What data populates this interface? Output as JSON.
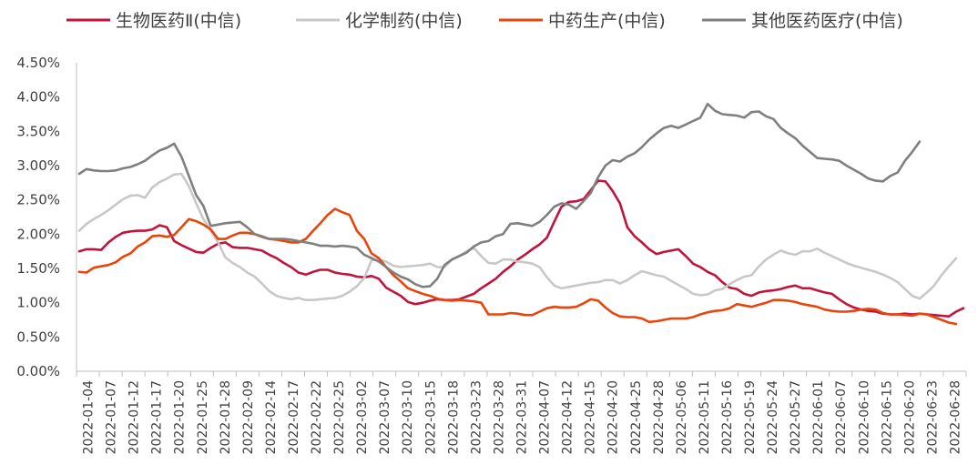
{
  "chart_data": {
    "type": "line",
    "title": "",
    "xlabel": "",
    "ylabel": "",
    "ylim": [
      0,
      0.045
    ],
    "y_ticks": [
      "0.00%",
      "0.50%",
      "1.00%",
      "1.50%",
      "2.00%",
      "2.50%",
      "3.00%",
      "3.50%",
      "4.00%",
      "4.50%"
    ],
    "x_ticks": [
      "2022-01-04",
      "2022-01-07",
      "2022-01-12",
      "2022-01-17",
      "2022-01-20",
      "2022-01-25",
      "2022-01-28",
      "2022-02-09",
      "2022-02-14",
      "2022-02-17",
      "2022-02-22",
      "2022-02-25",
      "2022-03-02",
      "2022-03-07",
      "2022-03-10",
      "2022-03-15",
      "2022-03-18",
      "2022-03-23",
      "2022-03-28",
      "2022-03-31",
      "2022-04-07",
      "2022-04-12",
      "2022-04-15",
      "2022-04-20",
      "2022-04-25",
      "2022-04-28",
      "2022-05-06",
      "2022-05-11",
      "2022-05-16",
      "2022-05-19",
      "2022-05-24",
      "2022-05-27",
      "2022-06-01",
      "2022-06-07",
      "2022-06-10",
      "2022-06-15",
      "2022-06-20",
      "2022-06-23",
      "2022-06-28"
    ],
    "legend_position": "top",
    "grid": false,
    "series": [
      {
        "name": "生物医药Ⅱ(中信)",
        "color": "#C0143C",
        "values": [
          0.0175,
          0.0178,
          0.0178,
          0.0177,
          0.0188,
          0.0196,
          0.0202,
          0.0204,
          0.0205,
          0.0205,
          0.0207,
          0.0213,
          0.021,
          0.019,
          0.0184,
          0.0179,
          0.0174,
          0.0173,
          0.018,
          0.0186,
          0.0188,
          0.0181,
          0.018,
          0.018,
          0.0178,
          0.0176,
          0.017,
          0.0165,
          0.0158,
          0.0152,
          0.0144,
          0.0141,
          0.0145,
          0.0148,
          0.0148,
          0.0144,
          0.0142,
          0.0141,
          0.0138,
          0.0137,
          0.0139,
          0.0135,
          0.0122,
          0.0116,
          0.011,
          0.0101,
          0.0098,
          0.01,
          0.0103,
          0.0105,
          0.0104,
          0.0104,
          0.0105,
          0.0109,
          0.0113,
          0.0121,
          0.0128,
          0.0135,
          0.0145,
          0.0153,
          0.0163,
          0.017,
          0.0178,
          0.0185,
          0.0195,
          0.0218,
          0.024,
          0.0247,
          0.0248,
          0.0251,
          0.0264,
          0.0278,
          0.0277,
          0.0263,
          0.0245,
          0.021,
          0.0197,
          0.0188,
          0.0178,
          0.0171,
          0.0174,
          0.0176,
          0.0178,
          0.0168,
          0.0157,
          0.0152,
          0.0145,
          0.014,
          0.013,
          0.0122,
          0.012,
          0.0113,
          0.011,
          0.0115,
          0.0117,
          0.0118,
          0.012,
          0.0123,
          0.0125,
          0.0121,
          0.0121,
          0.0118,
          0.0115,
          0.0113,
          0.0105,
          0.0098,
          0.0093,
          0.009,
          0.0088,
          0.0087,
          0.0084,
          0.0083,
          0.0083,
          0.0084,
          0.0083,
          0.0084,
          0.0083,
          0.0082,
          0.0081,
          0.008,
          0.0087,
          0.0092
        ]
      },
      {
        "name": "化学制药(中信)",
        "color": "#C8C8C8",
        "values": [
          0.0205,
          0.0215,
          0.0222,
          0.0228,
          0.0235,
          0.0243,
          0.0251,
          0.0256,
          0.0257,
          0.0253,
          0.0268,
          0.0276,
          0.0281,
          0.0287,
          0.0288,
          0.027,
          0.0245,
          0.0222,
          0.0205,
          0.0188,
          0.0166,
          0.0158,
          0.0152,
          0.0144,
          0.0138,
          0.0128,
          0.0117,
          0.011,
          0.0107,
          0.0105,
          0.0107,
          0.0104,
          0.0104,
          0.0105,
          0.0106,
          0.0107,
          0.011,
          0.0116,
          0.0124,
          0.0136,
          0.0162,
          0.0163,
          0.016,
          0.0154,
          0.0152,
          0.0153,
          0.0154,
          0.0155,
          0.0157,
          0.0152,
          0.0152,
          0.0163,
          0.0168,
          0.0175,
          0.018,
          0.0168,
          0.0158,
          0.0157,
          0.0163,
          0.0163,
          0.016,
          0.0159,
          0.0157,
          0.0152,
          0.0137,
          0.0125,
          0.0121,
          0.0123,
          0.0125,
          0.0127,
          0.0129,
          0.013,
          0.0133,
          0.0133,
          0.0128,
          0.0133,
          0.014,
          0.0146,
          0.0143,
          0.014,
          0.0138,
          0.0132,
          0.0126,
          0.012,
          0.0113,
          0.0111,
          0.0112,
          0.0118,
          0.012,
          0.0127,
          0.0133,
          0.0138,
          0.014,
          0.0153,
          0.0163,
          0.017,
          0.0176,
          0.0172,
          0.017,
          0.0175,
          0.0175,
          0.0179,
          0.0173,
          0.0168,
          0.0163,
          0.0158,
          0.0154,
          0.0151,
          0.0148,
          0.0145,
          0.0141,
          0.0136,
          0.013,
          0.012,
          0.011,
          0.0106,
          0.0115,
          0.0125,
          0.014,
          0.0153,
          0.0165
        ]
      },
      {
        "name": "中药生产(中信)",
        "color": "#E8450C",
        "values": [
          0.0145,
          0.0144,
          0.0151,
          0.0153,
          0.0155,
          0.0159,
          0.0167,
          0.0172,
          0.0182,
          0.0188,
          0.0197,
          0.0198,
          0.0196,
          0.0199,
          0.021,
          0.0222,
          0.0219,
          0.0214,
          0.0207,
          0.0193,
          0.0193,
          0.0198,
          0.0202,
          0.0202,
          0.02,
          0.0196,
          0.0193,
          0.0192,
          0.019,
          0.0188,
          0.0188,
          0.0193,
          0.0205,
          0.0216,
          0.0228,
          0.0237,
          0.0232,
          0.0228,
          0.0205,
          0.0193,
          0.0172,
          0.0165,
          0.0152,
          0.014,
          0.0131,
          0.0121,
          0.0117,
          0.0113,
          0.011,
          0.0106,
          0.0104,
          0.0103,
          0.0104,
          0.0103,
          0.0102,
          0.01,
          0.0083,
          0.0083,
          0.0083,
          0.0085,
          0.0084,
          0.0082,
          0.0082,
          0.0087,
          0.0092,
          0.0094,
          0.0093,
          0.0093,
          0.0094,
          0.0099,
          0.0105,
          0.0103,
          0.0093,
          0.0085,
          0.008,
          0.0079,
          0.0079,
          0.0077,
          0.0072,
          0.0073,
          0.0075,
          0.0077,
          0.0077,
          0.0077,
          0.0079,
          0.0083,
          0.0086,
          0.0088,
          0.0089,
          0.0092,
          0.0098,
          0.0096,
          0.0094,
          0.0097,
          0.01,
          0.0104,
          0.0104,
          0.0103,
          0.0101,
          0.0098,
          0.0096,
          0.0094,
          0.009,
          0.0088,
          0.0087,
          0.0087,
          0.0088,
          0.009,
          0.0091,
          0.009,
          0.0085,
          0.0083,
          0.0083,
          0.0082,
          0.0081,
          0.0084,
          0.0083,
          0.0079,
          0.0075,
          0.0071,
          0.0069
        ]
      },
      {
        "name": "其他医药医疗(中信)",
        "color": "#7F7F7F",
        "values": [
          0.0288,
          0.0295,
          0.0293,
          0.0292,
          0.0292,
          0.0293,
          0.0296,
          0.0298,
          0.0302,
          0.0307,
          0.0315,
          0.0322,
          0.0326,
          0.0332,
          0.0313,
          0.0285,
          0.0257,
          0.0241,
          0.0212,
          0.0214,
          0.0216,
          0.0217,
          0.0218,
          0.021,
          0.02,
          0.0197,
          0.0193,
          0.0193,
          0.0193,
          0.0192,
          0.019,
          0.0188,
          0.0186,
          0.0183,
          0.0183,
          0.0182,
          0.0183,
          0.0182,
          0.018,
          0.017,
          0.0165,
          0.016,
          0.0152,
          0.0144,
          0.0138,
          0.0134,
          0.0127,
          0.0123,
          0.0124,
          0.0135,
          0.0155,
          0.0163,
          0.0168,
          0.0173,
          0.0182,
          0.0188,
          0.019,
          0.0197,
          0.02,
          0.0215,
          0.0216,
          0.0214,
          0.0212,
          0.0218,
          0.0228,
          0.024,
          0.0245,
          0.0243,
          0.0237,
          0.0248,
          0.026,
          0.0283,
          0.03,
          0.0308,
          0.0306,
          0.0313,
          0.0318,
          0.0327,
          0.0338,
          0.0347,
          0.0355,
          0.0358,
          0.0355,
          0.036,
          0.0365,
          0.037,
          0.039,
          0.038,
          0.0375,
          0.0374,
          0.0373,
          0.037,
          0.0378,
          0.0379,
          0.0372,
          0.0368,
          0.0355,
          0.0347,
          0.034,
          0.0329,
          0.032,
          0.0311,
          0.031,
          0.0309,
          0.0307,
          0.03,
          0.0294,
          0.0288,
          0.0281,
          0.0278,
          0.0277,
          0.0285,
          0.029,
          0.0307,
          0.032,
          0.0335
        ]
      }
    ]
  }
}
